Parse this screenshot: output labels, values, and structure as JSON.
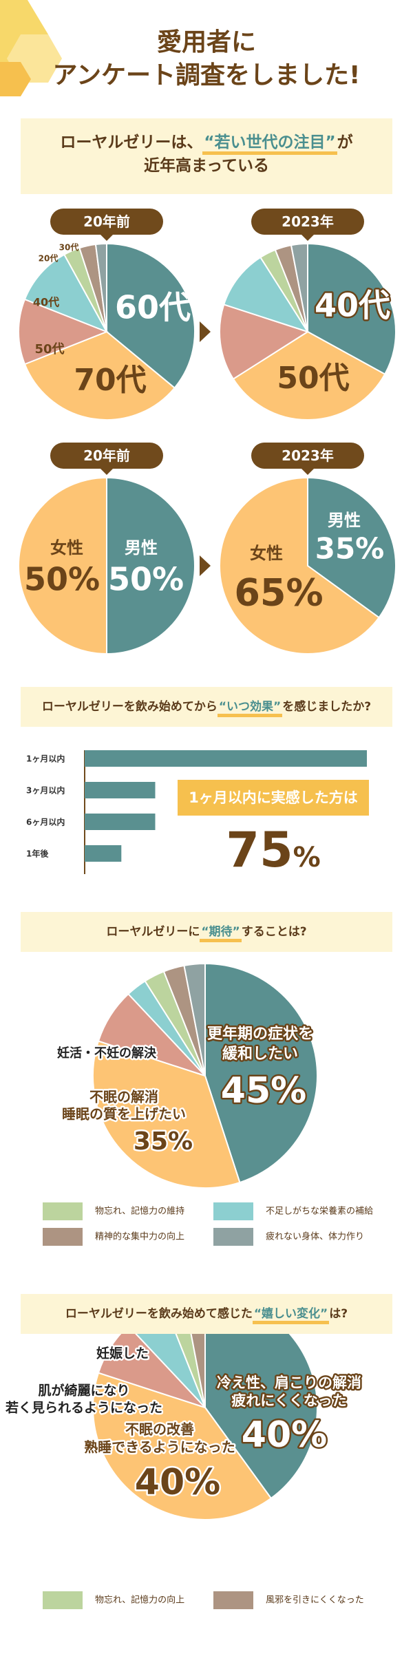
{
  "colors": {
    "teal": "#5a9090",
    "orange": "#fdc474",
    "salmon": "#da9a8a",
    "light_teal": "#8ccfd0",
    "green": "#bcd49e",
    "brown_grey": "#ad9482",
    "grey": "#8fa2a2",
    "dark_brown": "#704a1c",
    "banner": "#fdf5d5",
    "accent_yellow": "#f6c04e"
  },
  "hero": {
    "line1": "愛用者に",
    "line2": "アンケート調査をしました!"
  },
  "section1": {
    "line1_pre": "ローヤルゼリーは、",
    "line1_hl": "“若い世代の注目”",
    "line1_post": "が",
    "line2": "近年高まっている"
  },
  "labels": {
    "before": "20年前",
    "after": "2023年"
  },
  "section2": {
    "pre": "ローヤルゼリーを飲み始めてから",
    "hl": "“いつ効果”",
    "post": "を感じましたか?",
    "callout": "1ヶ月以内に実感した方は",
    "big_value": "75",
    "big_unit": "%"
  },
  "section3": {
    "pre": "ローヤルゼリーに",
    "hl": "“期待”",
    "post": "することは?",
    "legend": [
      {
        "label": "物忘れ、記憶力の維持",
        "color": "#bcd49e"
      },
      {
        "label": "不足しがちな栄養素の補給",
        "color": "#8ccfd0"
      },
      {
        "label": "精神的な集中力の向上",
        "color": "#ad9482"
      },
      {
        "label": "疲れない身体、体力作り",
        "color": "#8fa2a2"
      }
    ]
  },
  "section4": {
    "pre": "ローヤルゼリーを飲み始めて感じた",
    "hl": "“嬉しい変化”",
    "post": "は?",
    "legend": [
      {
        "label": "物忘れ、記憶力の向上",
        "color": "#bcd49e"
      },
      {
        "label": "風邪を引きにくくなった",
        "color": "#ad9482"
      }
    ]
  },
  "chart_data": [
    {
      "type": "pie",
      "title": "20年前",
      "slices": [
        {
          "label": "60代",
          "value": 36,
          "color": "#5a9090"
        },
        {
          "label": "70代",
          "value": 33,
          "color": "#fdc474"
        },
        {
          "label": "50代",
          "value": 12,
          "color": "#da9a8a"
        },
        {
          "label": "40代",
          "value": 11,
          "color": "#8ccfd0"
        },
        {
          "label": "20代",
          "value": 3,
          "color": "#bcd49e"
        },
        {
          "label": "30代",
          "value": 3,
          "color": "#ad9482"
        },
        {
          "label": "",
          "value": 2,
          "color": "#8fa2a2"
        }
      ]
    },
    {
      "type": "pie",
      "title": "2023年",
      "slices": [
        {
          "label": "40代",
          "value": 33,
          "color": "#5a9090"
        },
        {
          "label": "50代",
          "value": 33,
          "color": "#fdc474"
        },
        {
          "label": "",
          "value": 14,
          "color": "#da9a8a"
        },
        {
          "label": "",
          "value": 11,
          "color": "#8ccfd0"
        },
        {
          "label": "",
          "value": 3,
          "color": "#bcd49e"
        },
        {
          "label": "",
          "value": 3,
          "color": "#ad9482"
        },
        {
          "label": "",
          "value": 3,
          "color": "#8fa2a2"
        }
      ]
    },
    {
      "type": "pie",
      "title": "20年前",
      "slices": [
        {
          "label": "男性",
          "value": 50,
          "value_label": "50",
          "color": "#5a9090"
        },
        {
          "label": "女性",
          "value": 50,
          "value_label": "50",
          "color": "#fdc474"
        }
      ]
    },
    {
      "type": "pie",
      "title": "2023年",
      "slices": [
        {
          "label": "男性",
          "value": 35,
          "value_label": "35",
          "color": "#5a9090"
        },
        {
          "label": "女性",
          "value": 65,
          "value_label": "65",
          "color": "#fdc474"
        }
      ]
    },
    {
      "type": "bar",
      "orientation": "horizontal",
      "categories": [
        "1ヶ月以内",
        "3ヶ月以内",
        "6ヶ月以内",
        "1年後"
      ],
      "values": [
        100,
        25,
        25,
        13
      ],
      "color": "#5a9090"
    },
    {
      "type": "pie",
      "slices": [
        {
          "label": "更年期の症状を緩和したい",
          "line1": "更年期の症状を",
          "line2": "緩和したい",
          "value": 45,
          "value_label": "45",
          "color": "#5a9090"
        },
        {
          "label": "不眠の解消 睡眠の質を上げたい",
          "line1": "不眠の解消",
          "line2": "睡眠の質を上げたい",
          "value": 35,
          "value_label": "35",
          "color": "#fdc474"
        },
        {
          "label": "妊活・不妊の解決",
          "value": 8,
          "color": "#da9a8a"
        },
        {
          "label": "不足しがちな栄養素の補給",
          "value": 3,
          "color": "#8ccfd0"
        },
        {
          "label": "物忘れ、記憶力の維持",
          "value": 3,
          "color": "#bcd49e"
        },
        {
          "label": "精神的な集中力の向上",
          "value": 3,
          "color": "#ad9482"
        },
        {
          "label": "疲れない身体、体力作り",
          "value": 3,
          "color": "#8fa2a2"
        }
      ]
    },
    {
      "type": "pie",
      "slices": [
        {
          "label": "冷え性、肩こりの解消 疲れにくくなった",
          "line1": "冷え性、肩こりの解消",
          "line2": "疲れにくくなった",
          "value": 40,
          "value_label": "40",
          "color": "#5a9090"
        },
        {
          "label": "不眠の改善 熟睡できるようになった",
          "line1": "不眠の改善",
          "line2": "熟睡できるようになった",
          "value": 40,
          "value_label": "40",
          "color": "#fdc474"
        },
        {
          "label": "肌が綺麗になり 若く見られるようになった",
          "line1": "肌が綺麗になり",
          "line2": "若く見られるようになった",
          "value": 8,
          "color": "#da9a8a"
        },
        {
          "label": "妊娠した",
          "value": 6,
          "color": "#8ccfd0"
        },
        {
          "label": "物忘れ、記憶力の向上",
          "value": 3,
          "color": "#bcd49e"
        },
        {
          "label": "風邪を引きにくくなった",
          "value": 3,
          "color": "#ad9482"
        }
      ]
    }
  ]
}
